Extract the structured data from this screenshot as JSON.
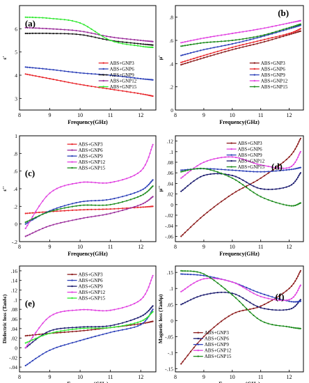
{
  "chart_data": [
    {
      "id": "a",
      "panel_label": "(a)",
      "type": "line",
      "xlabel": "Frequency(GHz)",
      "ylabel": "ε'",
      "xlim": [
        8,
        12.5
      ],
      "ylim": [
        2.5,
        7.0
      ],
      "xticks": [
        8,
        9,
        10,
        11,
        12
      ],
      "yticks": [
        3,
        4,
        5,
        6
      ],
      "legend_position": "lower-right",
      "series": [
        {
          "name": "ABS+GNP3",
          "color": "#e8262b",
          "x": [
            8.2,
            9,
            10,
            11,
            12,
            12.4
          ],
          "y": [
            4.05,
            3.85,
            3.6,
            3.4,
            3.2,
            3.1
          ]
        },
        {
          "name": "ABS+GNP6",
          "color": "#2b3fb8",
          "x": [
            8.2,
            9,
            10,
            11,
            12,
            12.4
          ],
          "y": [
            4.35,
            4.25,
            4.1,
            4.0,
            3.85,
            3.8
          ]
        },
        {
          "name": "ABS+GNP9",
          "color": "#1a1a1a",
          "x": [
            8.2,
            9,
            10,
            11,
            12,
            12.4
          ],
          "y": [
            5.8,
            5.8,
            5.75,
            5.5,
            5.35,
            5.3
          ]
        },
        {
          "name": "ABS+GNP12",
          "color": "#9b2d9b",
          "x": [
            8.2,
            9,
            10,
            11,
            12,
            12.4
          ],
          "y": [
            6.05,
            6.0,
            5.9,
            5.65,
            5.5,
            5.45
          ]
        },
        {
          "name": "ABS+GNP15",
          "color": "#2ee82e",
          "x": [
            8.2,
            9,
            10,
            11,
            12,
            12.4
          ],
          "y": [
            6.5,
            6.45,
            6.25,
            5.5,
            5.25,
            5.2
          ]
        }
      ]
    },
    {
      "id": "b",
      "panel_label": "(b)",
      "type": "line",
      "xlabel": "Frequency(GHz)",
      "ylabel": "μ'",
      "xlim": [
        8,
        12.5
      ],
      "ylim": [
        0.0,
        0.9
      ],
      "xticks": [
        8,
        9,
        10,
        11,
        12
      ],
      "yticks": [
        0.0,
        0.2,
        0.4,
        0.6,
        0.8
      ],
      "legend_position": "lower-right",
      "series": [
        {
          "name": "ABS+GNP3",
          "color": "#8b1a1a",
          "x": [
            8.2,
            9,
            10,
            11,
            12,
            12.4
          ],
          "y": [
            0.39,
            0.45,
            0.52,
            0.58,
            0.65,
            0.68
          ]
        },
        {
          "name": "ABS+GNP6",
          "color": "#e8262b",
          "x": [
            8.2,
            9,
            10,
            11,
            12,
            12.4
          ],
          "y": [
            0.41,
            0.47,
            0.54,
            0.6,
            0.66,
            0.7
          ]
        },
        {
          "name": "ABS+GNP9",
          "color": "#2b3fb8",
          "x": [
            8.2,
            9,
            10,
            11,
            12,
            12.4
          ],
          "y": [
            0.47,
            0.52,
            0.57,
            0.63,
            0.7,
            0.73
          ]
        },
        {
          "name": "ABS+GNP12",
          "color": "#e040e0",
          "x": [
            8.2,
            9,
            10,
            11,
            12,
            12.4
          ],
          "y": [
            0.58,
            0.62,
            0.66,
            0.7,
            0.75,
            0.77
          ]
        },
        {
          "name": "ABS+GNP15",
          "color": "#1a8a1a",
          "x": [
            8.2,
            9,
            10,
            11,
            12,
            12.4
          ],
          "y": [
            0.55,
            0.58,
            0.6,
            0.64,
            0.71,
            0.74
          ]
        }
      ]
    },
    {
      "id": "c",
      "panel_label": "(c)",
      "type": "line",
      "xlabel": "Frequency(GHz)",
      "ylabel": "ε''",
      "xlim": [
        8,
        12.5
      ],
      "ylim": [
        -0.2,
        1.0
      ],
      "xticks": [
        8,
        9,
        10,
        11,
        12
      ],
      "yticks": [
        -0.2,
        0.0,
        0.2,
        0.4,
        0.6,
        0.8,
        1.0
      ],
      "legend_position": "top-left",
      "series": [
        {
          "name": "ABS+GNP3",
          "color": "#e8262b",
          "x": [
            8.2,
            9,
            10,
            11,
            12,
            12.4
          ],
          "y": [
            0.12,
            0.14,
            0.16,
            0.17,
            0.19,
            0.2
          ]
        },
        {
          "name": "ABS+GNP6",
          "color": "#9b2d9b",
          "x": [
            8.2,
            9,
            10,
            11,
            12,
            12.4
          ],
          "y": [
            -0.14,
            -0.02,
            0.06,
            0.12,
            0.22,
            0.31
          ]
        },
        {
          "name": "ABS+GNP9",
          "color": "#2b3fb8",
          "x": [
            8.2,
            9,
            10,
            11,
            12,
            12.4
          ],
          "y": [
            0.0,
            0.15,
            0.25,
            0.28,
            0.38,
            0.5
          ]
        },
        {
          "name": "ABS+GNP12",
          "color": "#e040e0",
          "x": [
            8.2,
            9,
            10,
            11,
            12,
            12.4
          ],
          "y": [
            -0.05,
            0.35,
            0.47,
            0.47,
            0.6,
            0.9
          ]
        },
        {
          "name": "ABS+GNP15",
          "color": "#1a8a1a",
          "x": [
            8.2,
            9,
            10,
            11,
            12,
            12.4
          ],
          "y": [
            0.02,
            0.14,
            0.21,
            0.22,
            0.32,
            0.43
          ]
        }
      ]
    },
    {
      "id": "d",
      "panel_label": "(d)",
      "type": "line",
      "xlabel": "Frequency(GHz)",
      "ylabel": "μ''",
      "xlim": [
        8,
        12.5
      ],
      "ylim": [
        -0.07,
        0.13
      ],
      "xticks": [
        8,
        9,
        10,
        11,
        12
      ],
      "yticks": [
        -0.06,
        -0.04,
        -0.02,
        0.0,
        0.02,
        0.04,
        0.06,
        0.08,
        0.1,
        0.12
      ],
      "legend_position": "top-center",
      "series": [
        {
          "name": "ABS+GNP3",
          "color": "#8b1a1a",
          "x": [
            8.2,
            9,
            10,
            11,
            12,
            12.4
          ],
          "y": [
            -0.06,
            -0.02,
            0.02,
            0.05,
            0.09,
            0.125
          ]
        },
        {
          "name": "ABS+GNP6",
          "color": "#e040e0",
          "x": [
            8.2,
            9,
            10,
            11,
            12,
            12.4
          ],
          "y": [
            0.05,
            0.08,
            0.09,
            0.075,
            0.07,
            0.1
          ]
        },
        {
          "name": "ABS+GNP9",
          "color": "#2b3fb8",
          "x": [
            8.2,
            9,
            10,
            11,
            12,
            12.4
          ],
          "y": [
            0.065,
            0.068,
            0.065,
            0.062,
            0.066,
            0.07
          ]
        },
        {
          "name": "ABS+GNP12",
          "color": "#1a1a6e",
          "x": [
            8.2,
            9,
            10,
            11,
            12,
            12.4
          ],
          "y": [
            0.025,
            0.055,
            0.055,
            0.03,
            0.035,
            0.06
          ]
        },
        {
          "name": "ABS+GNP15",
          "color": "#1a8a1a",
          "x": [
            8.2,
            9,
            10,
            11,
            12,
            12.4
          ],
          "y": [
            0.062,
            0.068,
            0.05,
            0.015,
            -0.002,
            0.003
          ]
        }
      ]
    },
    {
      "id": "e",
      "panel_label": "(e)",
      "type": "line",
      "xlabel": "Frequency (GHz)",
      "ylabel": "Dielectric loss (Tanδε)",
      "xlim": [
        8,
        12.5
      ],
      "ylim": [
        -0.05,
        0.17
      ],
      "xticks": [
        8,
        9,
        10,
        11,
        12
      ],
      "yticks": [
        -0.04,
        -0.02,
        0.0,
        0.02,
        0.04,
        0.06,
        0.08,
        0.1,
        0.12,
        0.14,
        0.16
      ],
      "legend_position": "top-left",
      "series": [
        {
          "name": "ABS+GNP3",
          "color": "#8b1a1a",
          "x": [
            8.2,
            9,
            10,
            11,
            12,
            12.4
          ],
          "y": [
            0.025,
            0.03,
            0.035,
            0.042,
            0.05,
            0.055
          ]
        },
        {
          "name": "ABS+GNP6",
          "color": "#2b3fb8",
          "x": [
            8.2,
            9,
            10,
            11,
            12,
            12.4
          ],
          "y": [
            -0.037,
            -0.005,
            0.015,
            0.032,
            0.048,
            0.08
          ]
        },
        {
          "name": "ABS+GNP9",
          "color": "#1a1a6e",
          "x": [
            8.2,
            9,
            10,
            11,
            12,
            12.4
          ],
          "y": [
            0.0,
            0.035,
            0.043,
            0.046,
            0.065,
            0.087
          ]
        },
        {
          "name": "ABS+GNP12",
          "color": "#e040e0",
          "x": [
            8.2,
            9,
            10,
            11,
            12,
            12.4
          ],
          "y": [
            0.0,
            0.065,
            0.079,
            0.078,
            0.1,
            0.15
          ]
        },
        {
          "name": "ABS+GNP15",
          "color": "#2ee82e",
          "x": [
            8.2,
            9,
            10,
            11,
            12,
            12.4
          ],
          "y": [
            0.01,
            0.03,
            0.04,
            0.042,
            0.055,
            0.075
          ]
        }
      ]
    },
    {
      "id": "f",
      "panel_label": "(f)",
      "type": "line",
      "xlabel": "Frequency (GHz)",
      "ylabel": "Magnetic loss (Tanδμ)",
      "xlim": [
        8,
        12.5
      ],
      "ylim": [
        -0.16,
        0.17
      ],
      "xticks": [
        8,
        9,
        10,
        11,
        12
      ],
      "yticks": [
        -0.15,
        -0.1,
        -0.05,
        0.0,
        0.05,
        0.1,
        0.15
      ],
      "legend_position": "bottom-left",
      "series": [
        {
          "name": "ABS+GNP3",
          "color": "#8b1a1a",
          "x": [
            8.2,
            9,
            10,
            11,
            12,
            12.4
          ],
          "y": [
            -0.135,
            -0.05,
            0.02,
            0.045,
            0.1,
            0.155
          ]
        },
        {
          "name": "ABS+GNP6",
          "color": "#1a1a6e",
          "x": [
            8.2,
            9,
            10,
            11,
            12,
            12.4
          ],
          "y": [
            0.05,
            0.08,
            0.085,
            0.04,
            0.035,
            0.065
          ]
        },
        {
          "name": "ABS+GNP9",
          "color": "#2b3fb8",
          "x": [
            8.2,
            9,
            10,
            11,
            12,
            12.4
          ],
          "y": [
            0.145,
            0.14,
            0.12,
            0.085,
            0.06,
            0.06
          ]
        },
        {
          "name": "ABS+GNP12",
          "color": "#e040e0",
          "x": [
            8.2,
            9,
            10,
            11,
            12,
            12.4
          ],
          "y": [
            0.09,
            0.13,
            0.12,
            0.075,
            0.065,
            0.11
          ]
        },
        {
          "name": "ABS+GNP15",
          "color": "#1a8a1a",
          "x": [
            8.2,
            9,
            10,
            11,
            12,
            12.4
          ],
          "y": [
            0.155,
            0.145,
            0.08,
            0.0,
            -0.02,
            -0.025
          ]
        }
      ]
    }
  ]
}
